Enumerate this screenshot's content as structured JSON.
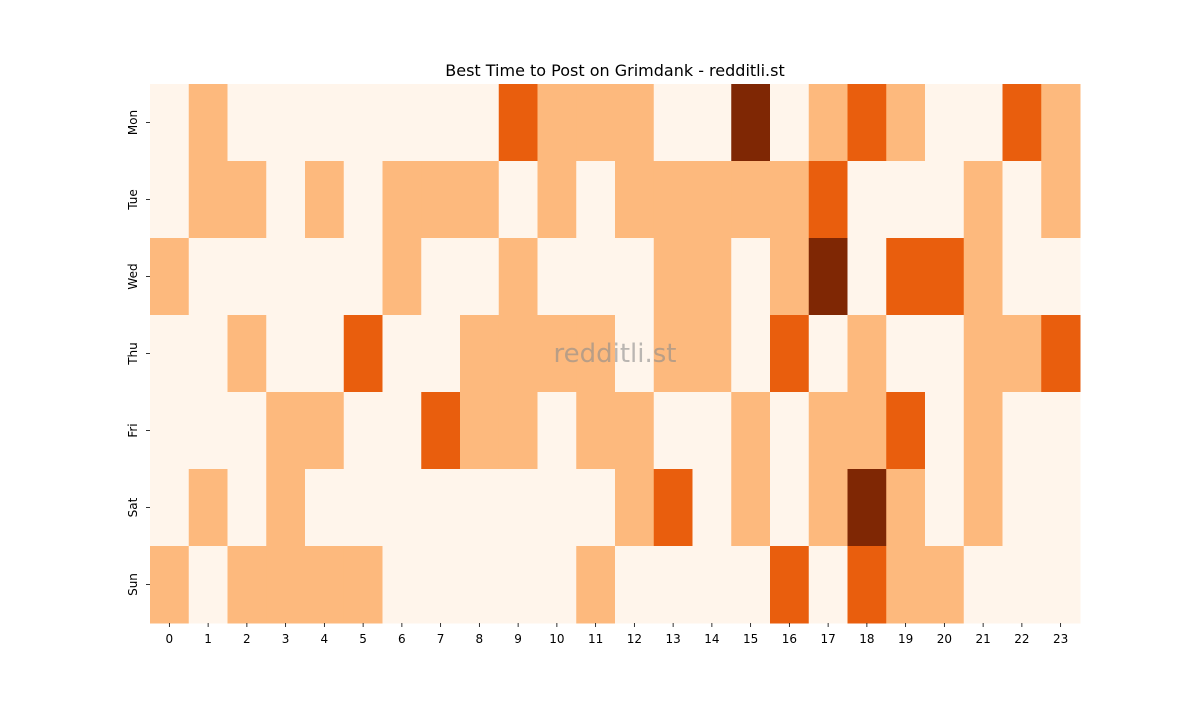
{
  "chart_data": {
    "type": "heatmap",
    "title": "Best Time to Post on Grimdank - redditli.st",
    "watermark": "redditli.st",
    "x_categories": [
      "0",
      "1",
      "2",
      "3",
      "4",
      "5",
      "6",
      "7",
      "8",
      "9",
      "10",
      "11",
      "12",
      "13",
      "14",
      "15",
      "16",
      "17",
      "18",
      "19",
      "20",
      "21",
      "22",
      "23"
    ],
    "y_categories": [
      "Mon",
      "Tue",
      "Wed",
      "Thu",
      "Fri",
      "Sat",
      "Sun"
    ],
    "values": [
      [
        0,
        1,
        0,
        0,
        0,
        0,
        0,
        0,
        0,
        2,
        1,
        1,
        1,
        0,
        0,
        3,
        0,
        1,
        2,
        1,
        0,
        0,
        2,
        1
      ],
      [
        0,
        1,
        1,
        0,
        1,
        0,
        1,
        1,
        1,
        0,
        1,
        0,
        1,
        1,
        1,
        1,
        1,
        2,
        0,
        0,
        0,
        1,
        0,
        1
      ],
      [
        1,
        0,
        0,
        0,
        0,
        0,
        1,
        0,
        0,
        1,
        0,
        0,
        0,
        1,
        1,
        0,
        1,
        3,
        0,
        2,
        2,
        1,
        0,
        0
      ],
      [
        0,
        0,
        1,
        0,
        0,
        2,
        0,
        0,
        1,
        1,
        1,
        1,
        0,
        1,
        1,
        0,
        2,
        0,
        1,
        0,
        0,
        1,
        1,
        2
      ],
      [
        0,
        0,
        0,
        1,
        1,
        0,
        0,
        2,
        1,
        1,
        0,
        1,
        1,
        0,
        0,
        1,
        0,
        1,
        1,
        2,
        0,
        1,
        0,
        0
      ],
      [
        0,
        1,
        0,
        1,
        0,
        0,
        0,
        0,
        0,
        0,
        0,
        0,
        1,
        2,
        0,
        1,
        0,
        1,
        3,
        1,
        0,
        1,
        0,
        0
      ],
      [
        1,
        0,
        1,
        1,
        1,
        1,
        0,
        0,
        0,
        0,
        0,
        1,
        0,
        0,
        0,
        0,
        2,
        0,
        2,
        1,
        1,
        0,
        0,
        0
      ]
    ],
    "value_range": [
      0,
      3
    ],
    "colormap": "Oranges",
    "level_colors": [
      "#fff5eb",
      "#fdb97d",
      "#e95e0d",
      "#7f2704"
    ],
    "colorbar": false,
    "grid": false
  }
}
